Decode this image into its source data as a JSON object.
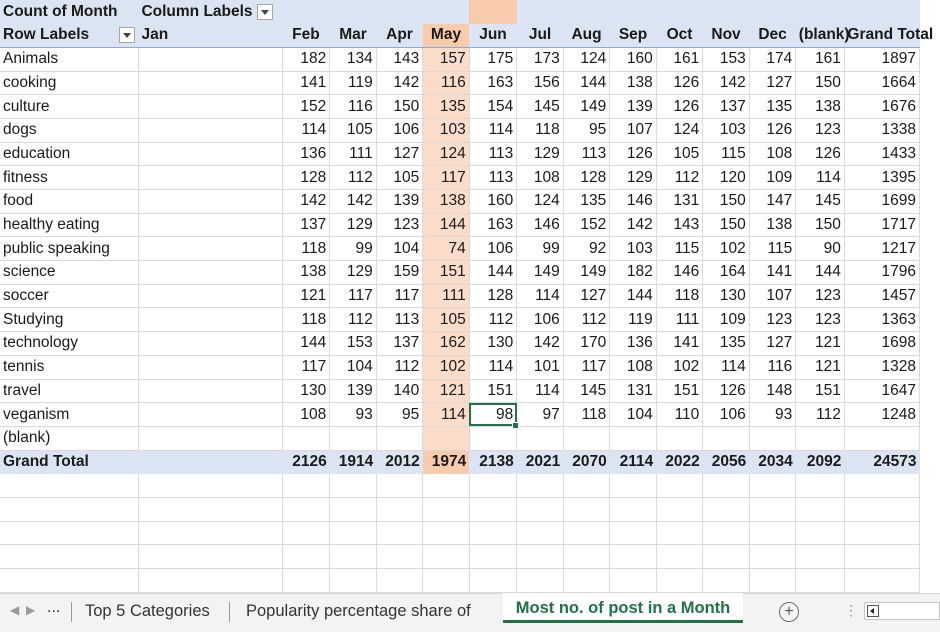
{
  "pivot": {
    "value_field": "Count of Month",
    "column_labels_caption": "Column Labels",
    "row_labels_caption": "Row Labels",
    "months": [
      "Jan",
      "Feb",
      "Mar",
      "Apr",
      "May",
      "Jun",
      "Jul",
      "Aug",
      "Sep",
      "Oct",
      "Nov",
      "Dec",
      "(blank)"
    ],
    "grand_total_caption": "Grand Total",
    "rows": [
      {
        "label": "Animals",
        "values": [
          "",
          "182",
          "134",
          "143",
          "157",
          "175",
          "173",
          "124",
          "160",
          "161",
          "153",
          "174",
          "161",
          ""
        ],
        "total": "1897"
      },
      {
        "label": "cooking",
        "values": [
          "",
          "141",
          "119",
          "142",
          "116",
          "163",
          "156",
          "144",
          "138",
          "126",
          "142",
          "127",
          "150",
          ""
        ],
        "total": "1664"
      },
      {
        "label": "culture",
        "values": [
          "",
          "152",
          "116",
          "150",
          "135",
          "154",
          "145",
          "149",
          "139",
          "126",
          "137",
          "135",
          "138",
          ""
        ],
        "total": "1676"
      },
      {
        "label": "dogs",
        "values": [
          "",
          "114",
          "105",
          "106",
          "103",
          "114",
          "118",
          "95",
          "107",
          "124",
          "103",
          "126",
          "123",
          ""
        ],
        "total": "1338"
      },
      {
        "label": "education",
        "values": [
          "",
          "136",
          "111",
          "127",
          "124",
          "113",
          "129",
          "113",
          "126",
          "105",
          "115",
          "108",
          "126",
          ""
        ],
        "total": "1433"
      },
      {
        "label": "fitness",
        "values": [
          "",
          "128",
          "112",
          "105",
          "117",
          "113",
          "108",
          "128",
          "129",
          "112",
          "120",
          "109",
          "114",
          ""
        ],
        "total": "1395"
      },
      {
        "label": "food",
        "values": [
          "",
          "142",
          "142",
          "139",
          "138",
          "160",
          "124",
          "135",
          "146",
          "131",
          "150",
          "147",
          "145",
          ""
        ],
        "total": "1699"
      },
      {
        "label": "healthy eating",
        "values": [
          "",
          "137",
          "129",
          "123",
          "144",
          "163",
          "146",
          "152",
          "142",
          "143",
          "150",
          "138",
          "150",
          ""
        ],
        "total": "1717"
      },
      {
        "label": "public speaking",
        "values": [
          "",
          "118",
          "99",
          "104",
          "74",
          "106",
          "99",
          "92",
          "103",
          "115",
          "102",
          "115",
          "90",
          ""
        ],
        "total": "1217"
      },
      {
        "label": "science",
        "values": [
          "",
          "138",
          "129",
          "159",
          "151",
          "144",
          "149",
          "149",
          "182",
          "146",
          "164",
          "141",
          "144",
          ""
        ],
        "total": "1796"
      },
      {
        "label": "soccer",
        "values": [
          "",
          "121",
          "117",
          "117",
          "111",
          "128",
          "114",
          "127",
          "144",
          "118",
          "130",
          "107",
          "123",
          ""
        ],
        "total": "1457"
      },
      {
        "label": "Studying",
        "values": [
          "",
          "118",
          "112",
          "113",
          "105",
          "112",
          "106",
          "112",
          "119",
          "111",
          "109",
          "123",
          "123",
          ""
        ],
        "total": "1363"
      },
      {
        "label": "technology",
        "values": [
          "",
          "144",
          "153",
          "137",
          "162",
          "130",
          "142",
          "170",
          "136",
          "141",
          "135",
          "127",
          "121",
          ""
        ],
        "total": "1698"
      },
      {
        "label": "tennis",
        "values": [
          "",
          "117",
          "104",
          "112",
          "102",
          "114",
          "101",
          "117",
          "108",
          "102",
          "114",
          "116",
          "121",
          ""
        ],
        "total": "1328"
      },
      {
        "label": "travel",
        "values": [
          "",
          "130",
          "139",
          "140",
          "121",
          "151",
          "114",
          "145",
          "131",
          "151",
          "126",
          "148",
          "151",
          ""
        ],
        "total": "1647"
      },
      {
        "label": "veganism",
        "values": [
          "",
          "108",
          "93",
          "95",
          "114",
          "98",
          "97",
          "118",
          "104",
          "110",
          "106",
          "93",
          "112",
          ""
        ],
        "total": "1248"
      },
      {
        "label": "(blank)",
        "values": [
          "",
          "",
          "",
          "",
          "",
          "",
          "",
          "",
          "",
          "",
          "",
          "",
          "",
          ""
        ],
        "total": ""
      }
    ],
    "grand_total_row": {
      "label": "Grand Total",
      "values": [
        "",
        "2126",
        "1914",
        "2012",
        "1974",
        "2138",
        "2021",
        "2070",
        "2114",
        "2022",
        "2056",
        "2034",
        "2092",
        ""
      ],
      "total": "24573"
    }
  },
  "highlight": {
    "column": "May",
    "selected_cell": {
      "row": "veganism",
      "column": "Jun"
    }
  },
  "sheet_tabs": {
    "ellipsis": "...",
    "tabs": [
      {
        "label": "Top 5 Categories",
        "active": false
      },
      {
        "label": "Popularity percentage share of",
        "active": false
      },
      {
        "label": "Most no. of post in a Month",
        "active": true
      }
    ]
  },
  "colors": {
    "accent": "#217346",
    "header_fill": "#dbe4f2",
    "highlight_fill": "#fbdccb"
  }
}
